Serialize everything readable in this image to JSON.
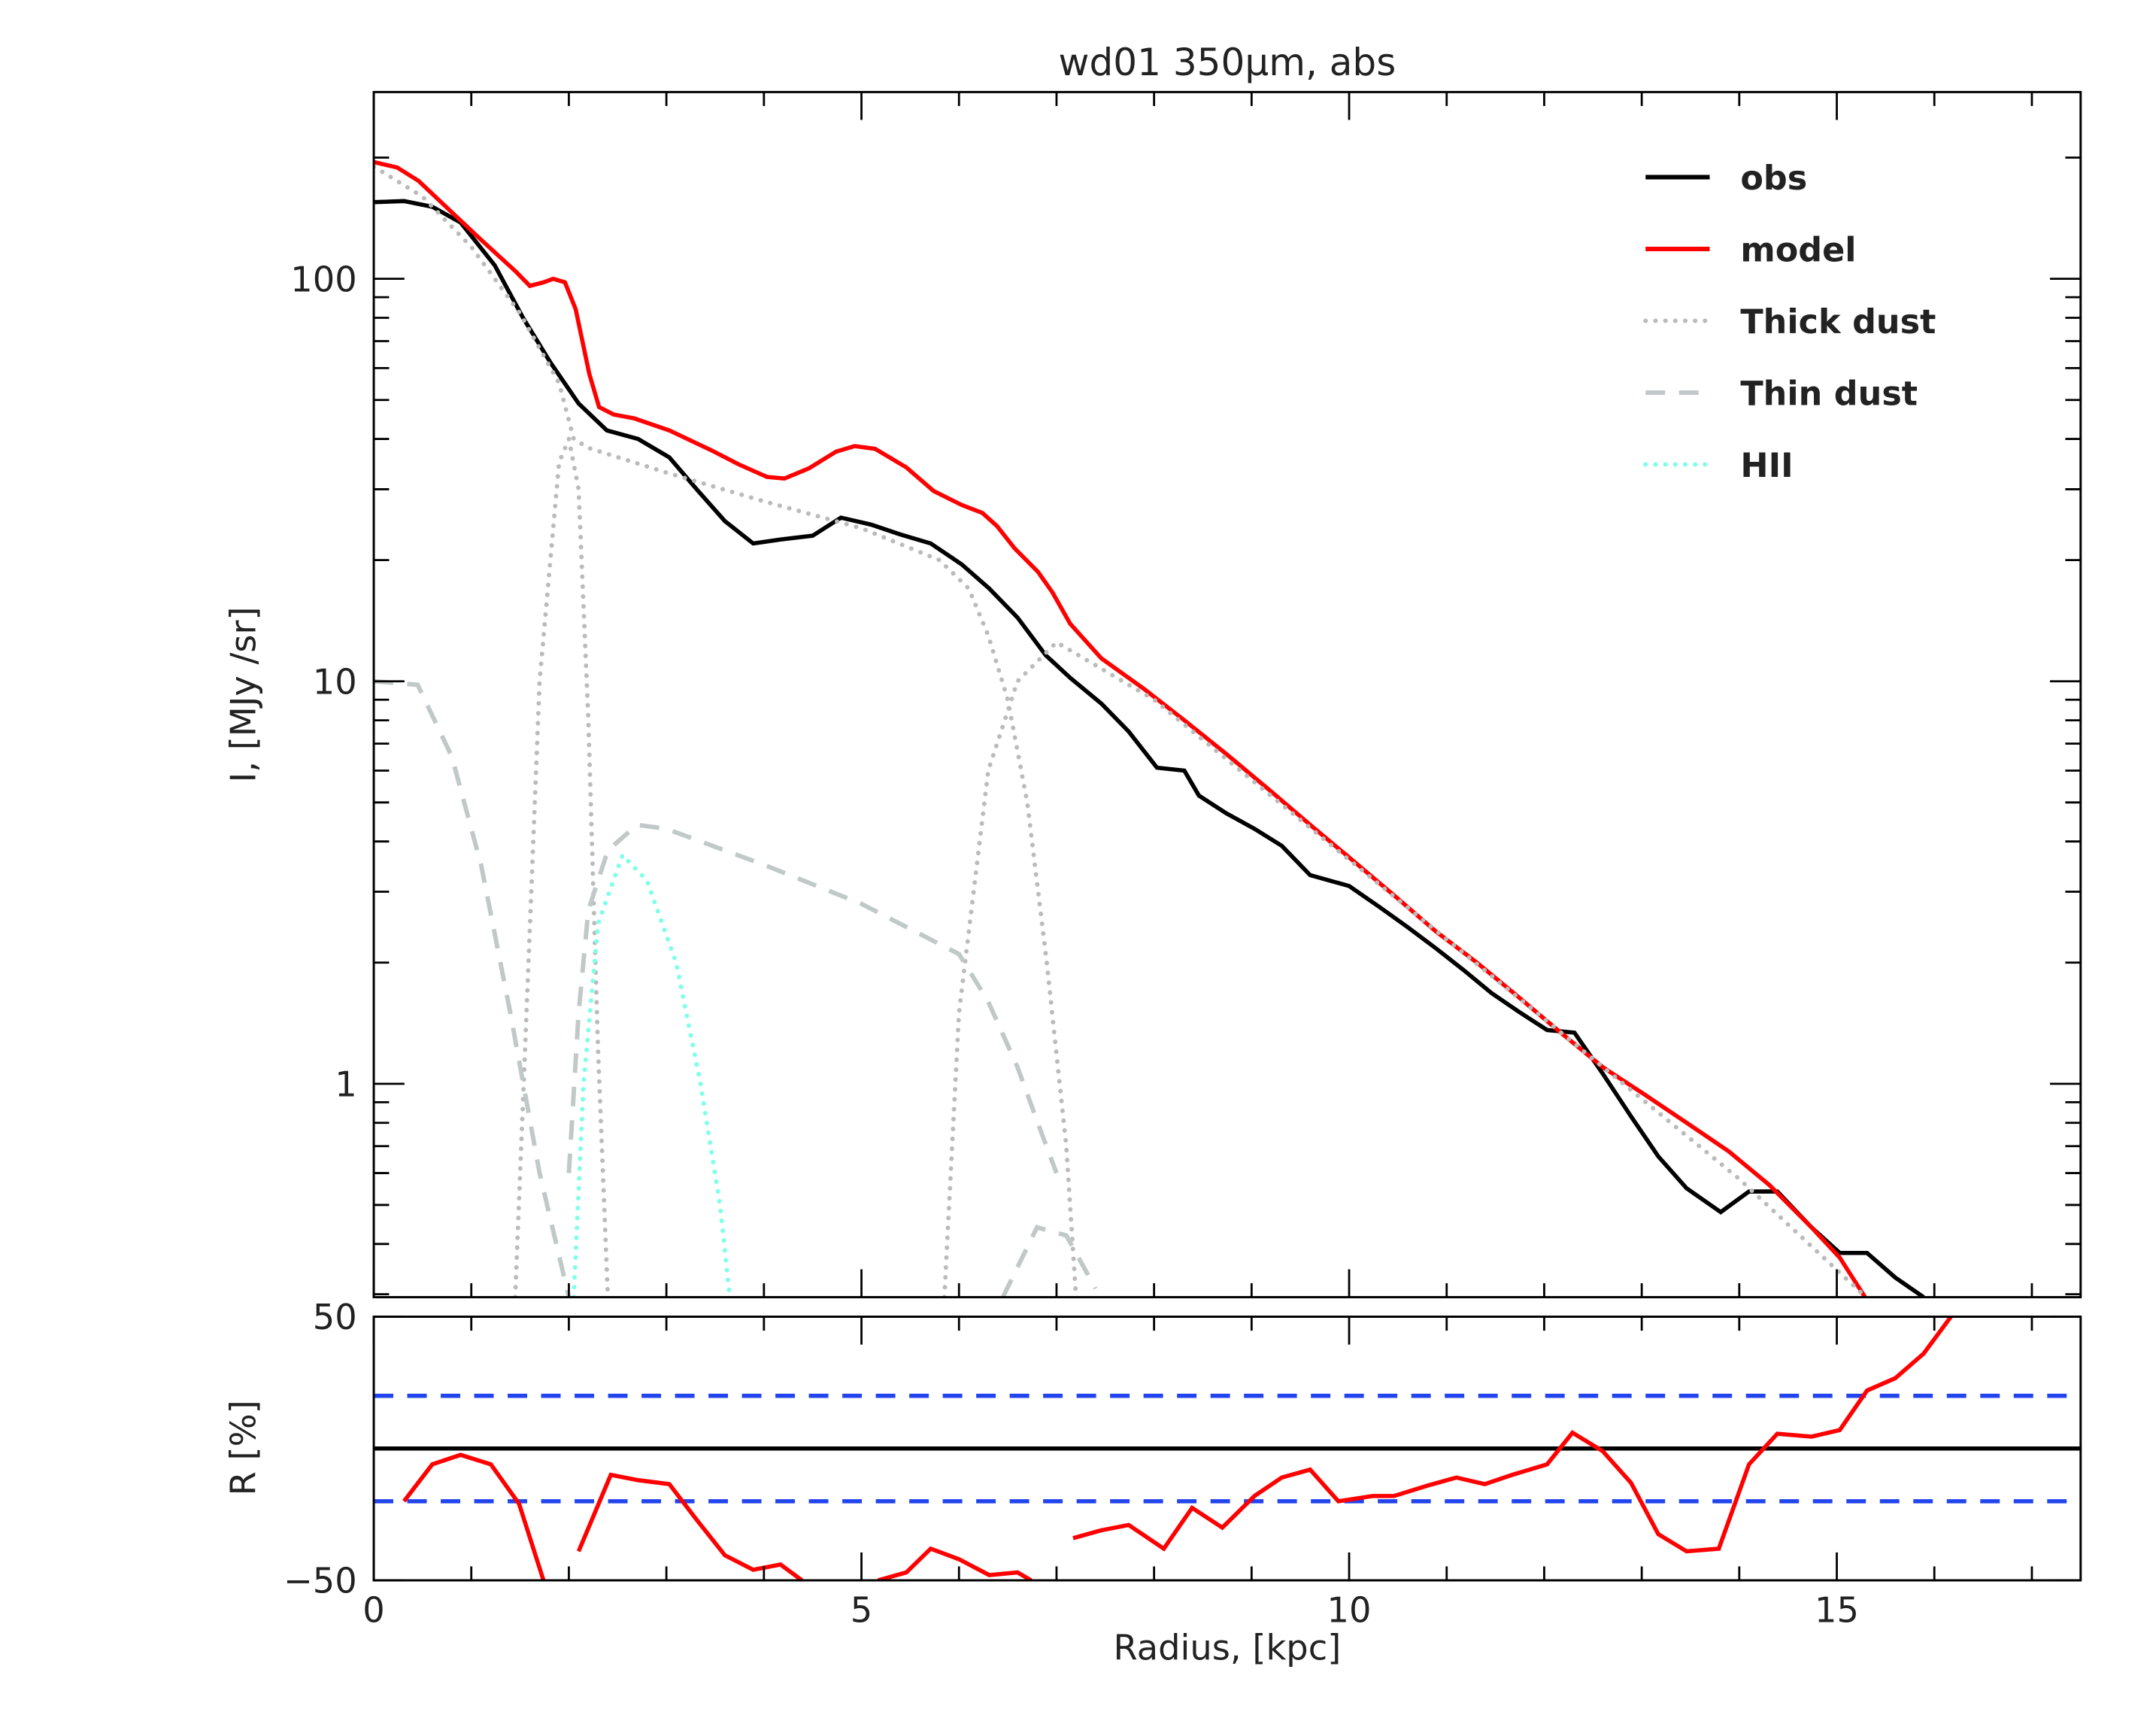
{
  "chart_data": [
    {
      "type": "line",
      "title": "wd01 350μm, abs",
      "ylabel": "I, [MJy /sr]",
      "log_y": true,
      "xlim": [
        0,
        17.5
      ],
      "xticks": [
        0,
        5,
        10,
        15
      ],
      "xminorticks": [
        1,
        2,
        3,
        4,
        6,
        7,
        8,
        9,
        11,
        12,
        13,
        14,
        16,
        17
      ],
      "ylim": [
        0.295,
        291
      ],
      "yticks": [
        1,
        10,
        100
      ],
      "yminorticks": [
        0.3,
        0.4,
        0.5,
        0.6,
        0.7,
        0.8,
        0.9,
        2,
        3,
        4,
        5,
        6,
        7,
        8,
        9,
        20,
        30,
        40,
        50,
        60,
        70,
        80,
        90,
        200
      ],
      "legend": "upper right",
      "series": [
        {
          "name": "obs",
          "color": "#000000",
          "style": "solid",
          "x": [
            0,
            0.31,
            0.6,
            0.89,
            1.24,
            1.53,
            1.81,
            2.1,
            2.39,
            2.71,
            3.03,
            3.31,
            3.6,
            3.89,
            4.17,
            4.5,
            4.79,
            5.1,
            5.39,
            5.71,
            6.03,
            6.31,
            6.6,
            6.89,
            7.14,
            7.46,
            7.74,
            8.03,
            8.31,
            8.46,
            8.74,
            9.03,
            9.31,
            9.6,
            10.0,
            10.31,
            10.6,
            10.89,
            11.17,
            11.46,
            11.74,
            12.03,
            12.31,
            12.6,
            12.89,
            13.17,
            13.46,
            13.81,
            14.1,
            14.39,
            14.74,
            15.03,
            15.31,
            15.6,
            15.89
          ],
          "values": [
            155,
            156,
            151,
            138,
            108,
            80,
            62,
            49,
            42,
            40,
            36,
            30,
            25,
            22,
            22.5,
            23,
            25.5,
            24.5,
            23.2,
            22,
            19.5,
            17,
            14.4,
            11.6,
            10.2,
            8.8,
            7.5,
            6.1,
            6.0,
            5.2,
            4.7,
            4.3,
            3.9,
            3.3,
            3.1,
            2.75,
            2.45,
            2.17,
            1.92,
            1.68,
            1.51,
            1.36,
            1.34,
            1.06,
            0.83,
            0.66,
            0.55,
            0.48,
            0.54,
            0.54,
            0.44,
            0.38,
            0.38,
            0.33,
            0.295
          ]
        },
        {
          "name": "model",
          "color": "#ff0000",
          "style": "solid",
          "x": [
            0,
            0.24,
            0.46,
            0.74,
            1.1,
            1.46,
            1.6,
            1.74,
            1.84,
            1.96,
            2.07,
            2.21,
            2.31,
            2.46,
            2.67,
            3.03,
            3.46,
            3.74,
            4.03,
            4.21,
            4.46,
            4.74,
            4.93,
            5.14,
            5.46,
            5.74,
            6.03,
            6.24,
            6.39,
            6.57,
            6.81,
            6.96,
            7.14,
            7.46,
            7.89,
            8.31,
            8.74,
            9.17,
            9.6,
            10.03,
            10.46,
            10.89,
            11.31,
            11.74,
            12.17,
            12.6,
            13.03,
            13.46,
            13.89,
            14.31,
            14.74,
            15.03,
            15.29
          ],
          "values": [
            195,
            189,
            175,
            151,
            125,
            104,
            96,
            98,
            100,
            98,
            84,
            58,
            48,
            46,
            45,
            42,
            37.5,
            34.6,
            32.2,
            31.9,
            33.8,
            37.2,
            38.4,
            37.8,
            34,
            29.7,
            27.4,
            26.2,
            24.3,
            21.4,
            18.7,
            16.6,
            13.9,
            11.4,
            9.6,
            8.0,
            6.6,
            5.4,
            4.4,
            3.6,
            2.94,
            2.39,
            2.0,
            1.64,
            1.34,
            1.1,
            0.94,
            0.8,
            0.68,
            0.56,
            0.44,
            0.37,
            0.295
          ]
        },
        {
          "name": "Thick dust",
          "color": "#bbbbbb",
          "style": "dotted",
          "x": [
            0,
            0.5,
            1.0,
            1.5,
            1.9,
            2.05,
            2.2,
            3.0,
            4.0,
            5.0,
            5.8,
            6.1,
            6.3,
            6.5,
            6.7,
            6.9,
            7.1,
            7.2,
            null,
            1.45,
            1.55,
            1.7,
            1.9,
            2.0,
            2.1,
            2.2,
            2.3,
            2.4,
            null,
            5.85,
            6.0,
            6.3,
            6.6,
            7.0,
            8.0,
            10.0,
            12.0,
            14.0,
            15.3
          ],
          "values": [
            190,
            160,
            120,
            82,
            55,
            40,
            38,
            33,
            28,
            24,
            20,
            17,
            13,
            9,
            5,
            2,
            0.7,
            0.295,
            null,
            0.295,
            1.2,
            10,
            35,
            40,
            30,
            8,
            1.2,
            0.295,
            null,
            0.295,
            1.5,
            6,
            10,
            12.5,
            9,
            3.6,
            1.45,
            0.58,
            0.295
          ]
        },
        {
          "name": "Thin dust",
          "color": "#c0c8c8",
          "style": "dashed",
          "x": [
            0,
            0.45,
            0.8,
            1.1,
            1.4,
            1.7,
            2.0,
            null,
            2.0,
            2.1,
            2.2,
            2.4,
            2.7,
            3.0,
            4.0,
            5.0,
            6.0,
            6.3,
            6.6,
            6.85,
            7.0,
            null,
            6.45,
            6.8,
            7.1,
            7.4
          ],
          "values": [
            10,
            9.8,
            6.5,
            3.5,
            1.5,
            0.6,
            0.295,
            null,
            0.6,
            1.5,
            2.7,
            3.8,
            4.4,
            4.3,
            3.5,
            2.8,
            2.1,
            1.6,
            1.1,
            0.75,
            0.6,
            null,
            0.295,
            0.44,
            0.42,
            0.31
          ]
        },
        {
          "name": "HII",
          "color": "#7fffe8",
          "style": "dotted",
          "x": [
            2.05,
            2.15,
            2.3,
            2.55,
            2.8,
            3.1,
            3.35,
            3.55,
            3.65
          ],
          "values": [
            0.295,
            1,
            2.5,
            3.7,
            3.2,
            2.0,
            1.0,
            0.5,
            0.295
          ]
        }
      ]
    },
    {
      "type": "line",
      "ylabel": "R [%]",
      "xlabel": "Radius, [kpc]",
      "xlim": [
        0,
        17.5
      ],
      "xticks": [
        0,
        5,
        10,
        15
      ],
      "xminorticks": [
        1,
        2,
        3,
        4,
        6,
        7,
        8,
        9,
        11,
        12,
        13,
        14,
        16,
        17
      ],
      "ylim": [
        -50,
        50
      ],
      "yticks": [
        {
          "value": -50,
          "label": "−50"
        },
        50
      ],
      "reference_lines": [
        {
          "value": 0,
          "color": "#000000",
          "style": "solid"
        },
        {
          "value": 20,
          "color": "#2244ee",
          "style": "dashed"
        },
        {
          "value": -20,
          "color": "#2244ee",
          "style": "dashed"
        }
      ],
      "series": [
        {
          "color": "#ff0000",
          "style": "solid",
          "x": [
            0.31,
            0.6,
            0.89,
            1.2,
            1.49,
            1.74,
            null,
            2.1,
            2.43,
            2.71,
            3.03,
            3.31,
            3.6,
            3.89,
            4.17,
            4.39,
            null,
            5.17,
            5.46,
            5.71,
            6.0,
            6.31,
            6.6,
            6.74,
            null,
            7.17,
            7.46,
            7.74,
            8.1,
            8.39,
            8.7,
            9.03,
            9.31,
            9.6,
            9.89,
            10.24,
            10.46,
            10.81,
            11.1,
            11.39,
            11.67,
            12.03,
            12.29,
            12.6,
            12.89,
            13.17,
            13.46,
            13.79,
            14.1,
            14.39,
            14.74,
            15.03,
            15.31,
            15.6,
            15.89,
            16.17
          ],
          "values": [
            -20,
            -6,
            -2.4,
            -6,
            -21,
            -50,
            null,
            -39,
            -10,
            -12,
            -13.5,
            -27,
            -40.5,
            -46,
            -44,
            -50,
            null,
            -50,
            -47,
            -38,
            -42,
            -48,
            -47,
            -50,
            null,
            -34,
            -31,
            -29,
            -38,
            -22.5,
            -30,
            -18,
            -11,
            -8,
            -20,
            -18,
            -18,
            -14,
            -11,
            -13.5,
            -10,
            -6,
            6,
            -1,
            -13,
            -32.5,
            -39,
            -38,
            -6,
            5.6,
            4.5,
            7,
            22,
            26.7,
            36,
            50
          ]
        }
      ]
    }
  ]
}
